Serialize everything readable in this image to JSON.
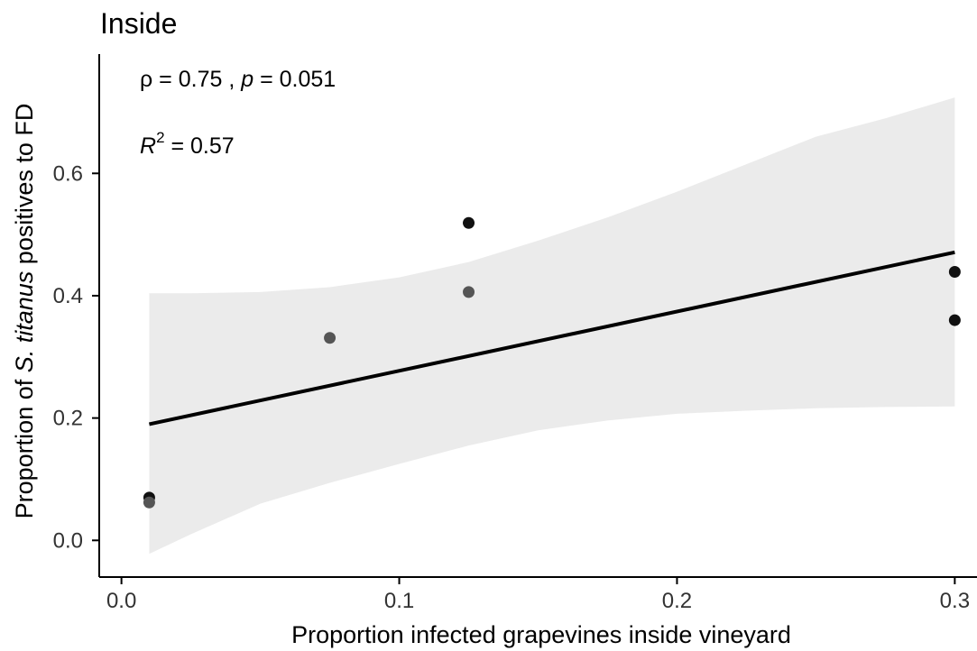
{
  "chart_data": {
    "type": "scatter",
    "title": "Inside",
    "xlabel": "Proportion infected grapevines inside vineyard",
    "ylabel": {
      "prefix": "Proportion of ",
      "italic": "S. titanus",
      "suffix": " positives to FD"
    },
    "xlim": [
      -0.008,
      0.308
    ],
    "ylim": [
      -0.06,
      0.795
    ],
    "x_ticks": [
      0.0,
      0.1,
      0.2,
      0.3
    ],
    "x_tick_labels": [
      "0.0",
      "0.1",
      "0.2",
      "0.3"
    ],
    "y_ticks": [
      0.0,
      0.2,
      0.4,
      0.6
    ],
    "y_tick_labels": [
      "0.0",
      "0.2",
      "0.4",
      "0.6"
    ],
    "points": [
      {
        "x": 0.01,
        "y": 0.07,
        "color": "#111111"
      },
      {
        "x": 0.01,
        "y": 0.062,
        "color": "#555555"
      },
      {
        "x": 0.075,
        "y": 0.331,
        "color": "#555555"
      },
      {
        "x": 0.125,
        "y": 0.519,
        "color": "#111111"
      },
      {
        "x": 0.125,
        "y": 0.406,
        "color": "#555555"
      },
      {
        "x": 0.3,
        "y": 0.439,
        "color": "#111111"
      },
      {
        "x": 0.3,
        "y": 0.36,
        "color": "#111111"
      }
    ],
    "regression": {
      "x": [
        0.01,
        0.3
      ],
      "y": [
        0.19,
        0.471
      ],
      "color": "#000000"
    },
    "confidence_band": {
      "x": [
        0.01,
        0.025,
        0.05,
        0.075,
        0.1,
        0.125,
        0.15,
        0.175,
        0.2,
        0.225,
        0.25,
        0.275,
        0.3
      ],
      "upper": [
        0.404,
        0.404,
        0.406,
        0.414,
        0.43,
        0.455,
        0.49,
        0.528,
        0.57,
        0.615,
        0.66,
        0.69,
        0.724
      ],
      "lower": [
        -0.022,
        0.01,
        0.06,
        0.094,
        0.125,
        0.155,
        0.18,
        0.196,
        0.207,
        0.212,
        0.216,
        0.218,
        0.219
      ],
      "color": "#ebebeb"
    },
    "annotations": [
      {
        "type": "rho",
        "rho_symbol": "ρ",
        "rho_text": " = 0.75 , ",
        "p_symbol": "p",
        "p_text": " = 0.051"
      },
      {
        "type": "r2",
        "r_symbol": "R",
        "superscript": "2",
        "value_text": " = 0.57"
      }
    ],
    "grid": false,
    "legend": "none"
  }
}
